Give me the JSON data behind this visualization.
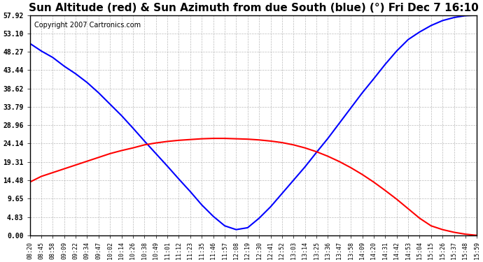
{
  "title": "Sun Altitude (red) & Sun Azimuth from due South (blue) (°) Fri Dec 7 16:10",
  "copyright": "Copyright 2007 Cartronics.com",
  "yticks": [
    0.0,
    4.83,
    9.65,
    14.48,
    19.31,
    24.14,
    28.96,
    33.79,
    38.62,
    43.44,
    48.27,
    53.1,
    57.92
  ],
  "xtick_labels": [
    "08:20",
    "08:45",
    "08:58",
    "09:09",
    "09:22",
    "09:34",
    "09:47",
    "10:02",
    "10:14",
    "10:26",
    "10:38",
    "10:49",
    "11:01",
    "11:12",
    "11:23",
    "11:35",
    "11:46",
    "11:57",
    "12:08",
    "12:19",
    "12:30",
    "12:41",
    "12:52",
    "13:03",
    "13:14",
    "13:25",
    "13:36",
    "13:47",
    "13:58",
    "14:09",
    "14:20",
    "14:31",
    "14:42",
    "14:53",
    "15:04",
    "15:15",
    "15:26",
    "15:37",
    "15:48",
    "15:59"
  ],
  "blue_y": [
    50.5,
    48.5,
    46.8,
    44.5,
    42.5,
    40.2,
    37.5,
    34.5,
    31.5,
    28.2,
    24.8,
    21.5,
    18.2,
    14.8,
    11.5,
    8.0,
    5.0,
    2.5,
    1.5,
    2.0,
    4.5,
    7.5,
    11.0,
    14.5,
    18.0,
    21.8,
    25.5,
    29.5,
    33.5,
    37.5,
    41.2,
    45.0,
    48.5,
    51.5,
    53.5,
    55.2,
    56.5,
    57.3,
    57.8,
    57.92
  ],
  "red_y": [
    14.0,
    15.5,
    16.5,
    17.5,
    18.5,
    19.5,
    20.5,
    21.5,
    22.3,
    23.0,
    23.8,
    24.3,
    24.7,
    25.0,
    25.2,
    25.4,
    25.5,
    25.5,
    25.4,
    25.3,
    25.1,
    24.8,
    24.4,
    23.8,
    23.0,
    22.0,
    20.8,
    19.4,
    17.8,
    16.0,
    14.0,
    11.8,
    9.5,
    7.0,
    4.5,
    2.5,
    1.5,
    0.8,
    0.3,
    0.0
  ],
  "blue_color": "#0000ff",
  "red_color": "#ff0000",
  "bg_color": "#ffffff",
  "grid_color": "#aaaaaa",
  "title_fontsize": 11,
  "copyright_fontsize": 7
}
